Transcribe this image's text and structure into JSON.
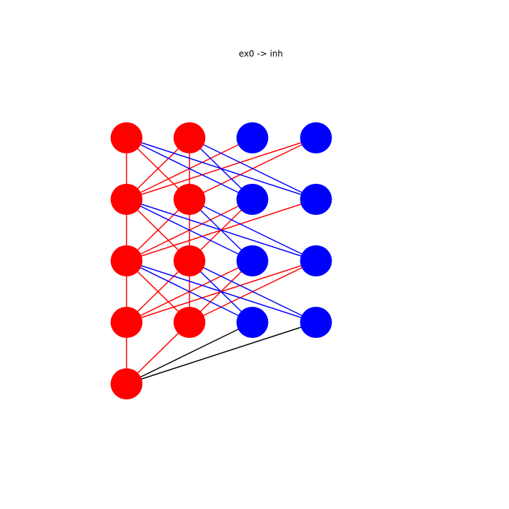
{
  "figure": {
    "title": "ex0 -> inh"
  },
  "colors": {
    "excitatory": "#ff0000",
    "inhibitory": "#0000ff",
    "other": "#000000",
    "background": "#ffffff"
  },
  "network": {
    "nodes": [
      {
        "id": "A1",
        "type": "excitatory"
      },
      {
        "id": "A2",
        "type": "excitatory"
      },
      {
        "id": "A3",
        "type": "excitatory"
      },
      {
        "id": "A4",
        "type": "excitatory"
      },
      {
        "id": "A5",
        "type": "excitatory"
      },
      {
        "id": "B1",
        "type": "excitatory"
      },
      {
        "id": "B2",
        "type": "excitatory"
      },
      {
        "id": "B3",
        "type": "excitatory"
      },
      {
        "id": "B4",
        "type": "excitatory"
      },
      {
        "id": "C1",
        "type": "inhibitory"
      },
      {
        "id": "C2",
        "type": "inhibitory"
      },
      {
        "id": "C3",
        "type": "inhibitory"
      },
      {
        "id": "C4",
        "type": "inhibitory"
      },
      {
        "id": "D1",
        "type": "inhibitory"
      },
      {
        "id": "D2",
        "type": "inhibitory"
      },
      {
        "id": "D3",
        "type": "inhibitory"
      },
      {
        "id": "D4",
        "type": "inhibitory"
      }
    ],
    "edges": [
      {
        "from": "A1",
        "to": "A2",
        "type": "excitatory"
      },
      {
        "from": "A2",
        "to": "A3",
        "type": "excitatory"
      },
      {
        "from": "A3",
        "to": "A4",
        "type": "excitatory"
      },
      {
        "from": "A4",
        "to": "A5",
        "type": "excitatory"
      },
      {
        "from": "B1",
        "to": "B2",
        "type": "excitatory"
      },
      {
        "from": "B2",
        "to": "B3",
        "type": "excitatory"
      },
      {
        "from": "B3",
        "to": "B4",
        "type": "excitatory"
      },
      {
        "from": "A1",
        "to": "B2",
        "type": "excitatory"
      },
      {
        "from": "B1",
        "to": "A2",
        "type": "excitatory"
      },
      {
        "from": "A2",
        "to": "B3",
        "type": "excitatory"
      },
      {
        "from": "B2",
        "to": "A3",
        "type": "excitatory"
      },
      {
        "from": "A3",
        "to": "B4",
        "type": "excitatory"
      },
      {
        "from": "B3",
        "to": "A4",
        "type": "excitatory"
      },
      {
        "from": "B4",
        "to": "A5",
        "type": "excitatory"
      },
      {
        "from": "C1",
        "to": "A2",
        "type": "excitatory"
      },
      {
        "from": "D1",
        "to": "A2",
        "type": "excitatory"
      },
      {
        "from": "D1",
        "to": "B2",
        "type": "excitatory"
      },
      {
        "from": "C2",
        "to": "A3",
        "type": "excitatory"
      },
      {
        "from": "C2",
        "to": "B3",
        "type": "excitatory"
      },
      {
        "from": "D2",
        "to": "A3",
        "type": "excitatory"
      },
      {
        "from": "C3",
        "to": "A4",
        "type": "excitatory"
      },
      {
        "from": "C3",
        "to": "B4",
        "type": "excitatory"
      },
      {
        "from": "D3",
        "to": "A4",
        "type": "excitatory"
      },
      {
        "from": "D3",
        "to": "B4",
        "type": "excitatory"
      },
      {
        "from": "A1",
        "to": "C2",
        "type": "inhibitory"
      },
      {
        "from": "A1",
        "to": "D2",
        "type": "inhibitory"
      },
      {
        "from": "B1",
        "to": "C2",
        "type": "inhibitory"
      },
      {
        "from": "B1",
        "to": "D2",
        "type": "inhibitory"
      },
      {
        "from": "A2",
        "to": "C3",
        "type": "inhibitory"
      },
      {
        "from": "A2",
        "to": "D3",
        "type": "inhibitory"
      },
      {
        "from": "B2",
        "to": "C3",
        "type": "inhibitory"
      },
      {
        "from": "B2",
        "to": "D3",
        "type": "inhibitory"
      },
      {
        "from": "A3",
        "to": "C4",
        "type": "inhibitory"
      },
      {
        "from": "A3",
        "to": "D4",
        "type": "inhibitory"
      },
      {
        "from": "B3",
        "to": "C4",
        "type": "inhibitory"
      },
      {
        "from": "B3",
        "to": "D4",
        "type": "inhibitory"
      },
      {
        "from": "A5",
        "to": "C4",
        "type": "other"
      },
      {
        "from": "A5",
        "to": "D4",
        "type": "other"
      }
    ]
  }
}
